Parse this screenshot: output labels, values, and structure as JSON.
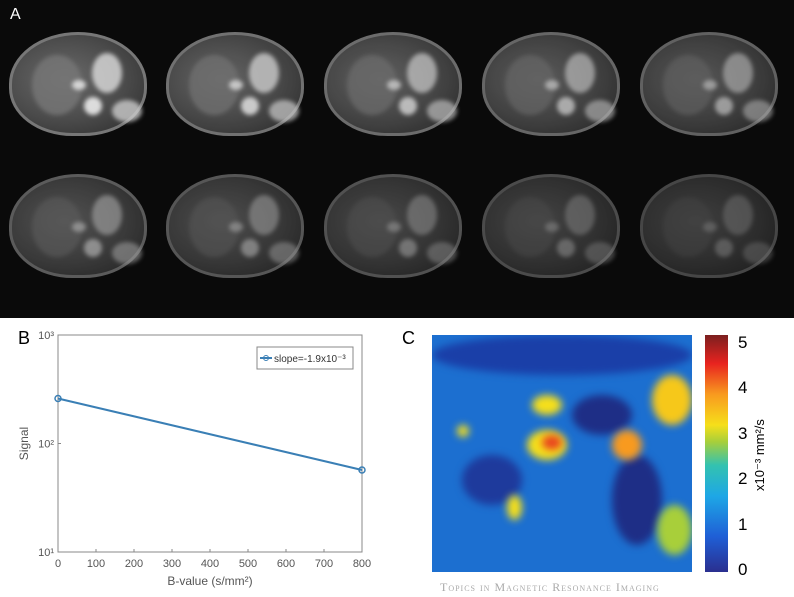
{
  "panels": {
    "a": "A",
    "b": "B",
    "c": "C"
  },
  "panel_a": {
    "images": 10,
    "rows": 2,
    "columns": 5
  },
  "chart_data": {
    "type": "line",
    "title": "",
    "xlabel": "B-value (s/mm²)",
    "ylabel": "Signal",
    "x": [
      0,
      800
    ],
    "series": [
      {
        "name": "slope=-1.9x10⁻³",
        "values": [
          260,
          57
        ],
        "color": "#3a7fb5",
        "marker": "circle"
      }
    ],
    "xlim": [
      0,
      800
    ],
    "ylim": [
      10,
      1000
    ],
    "yscale": "log",
    "xticks": [
      "0",
      "100",
      "200",
      "300",
      "400",
      "500",
      "600",
      "700",
      "800"
    ],
    "yticks": [
      "10¹",
      "10²",
      "10³"
    ],
    "legend": "top-right",
    "grid": false
  },
  "colorbar": {
    "label": "x10⁻³ mm²/s",
    "ticks": [
      "0",
      "1",
      "2",
      "3",
      "4",
      "5"
    ],
    "range": [
      0,
      5
    ],
    "colormap": "jet"
  },
  "watermark": "Topics in Magnetic Resonance Imaging"
}
